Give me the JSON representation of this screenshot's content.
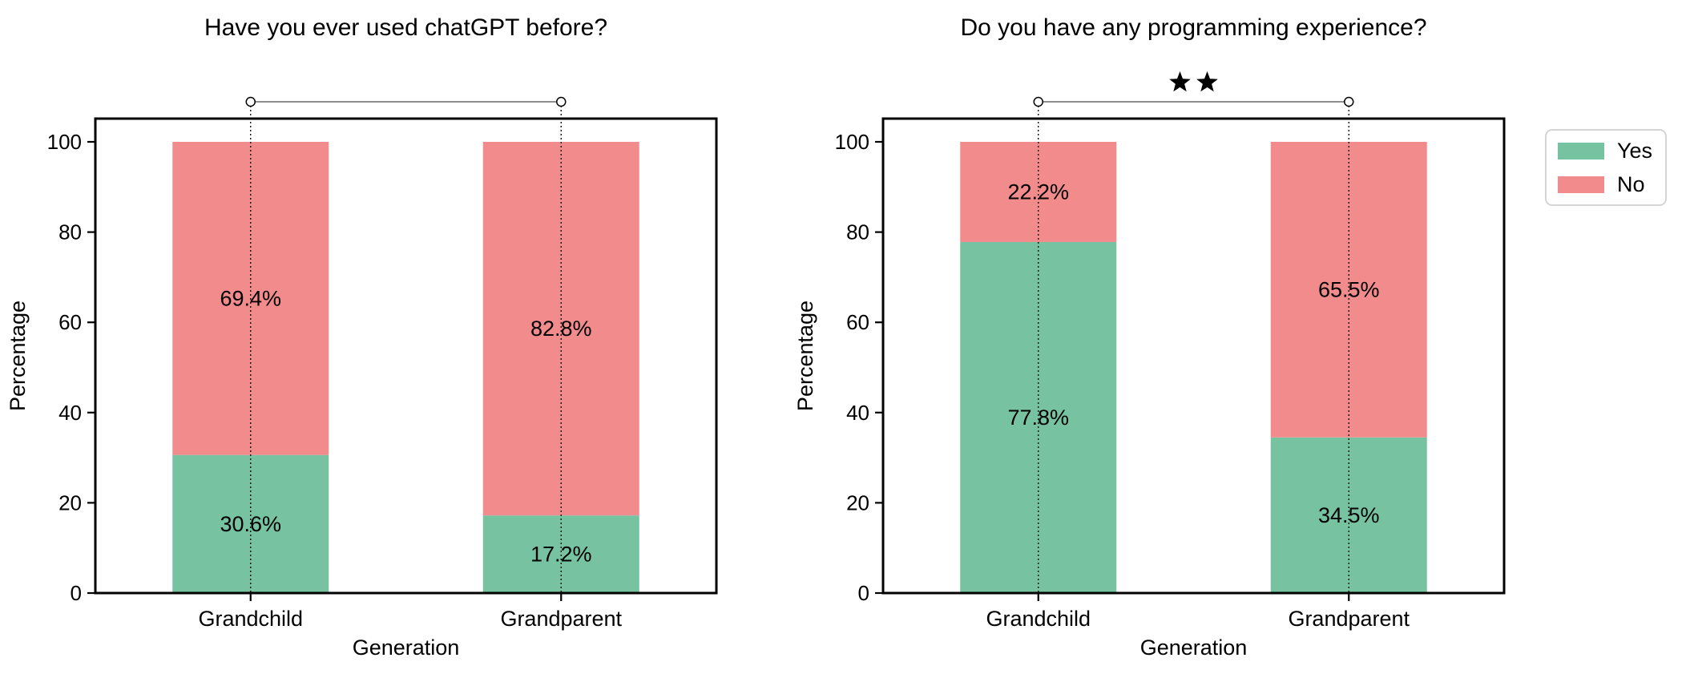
{
  "figure": {
    "background": "#ffffff",
    "colors": {
      "yes": "#76C2A1",
      "no": "#F28B8C",
      "bracket_line": "#7f7f7f",
      "axis": "#000000",
      "text": "#000000",
      "legend_border": "#d5d5d5"
    }
  },
  "legend": {
    "items": [
      {
        "label": "Yes",
        "color": "#76C2A1"
      },
      {
        "label": "No",
        "color": "#F28B8C"
      }
    ],
    "position": "outside upper right"
  },
  "chart_data": [
    {
      "type": "bar",
      "stacked": true,
      "title": "Have you ever used chatGPT before?",
      "xlabel": "Generation",
      "ylabel": "Percentage",
      "categories": [
        "Grandchild",
        "Grandparent"
      ],
      "series": [
        {
          "name": "Yes",
          "color": "#76C2A1",
          "values": [
            30.6,
            17.2
          ],
          "labels": [
            "30.6%",
            "17.2%"
          ]
        },
        {
          "name": "No",
          "color": "#F28B8C",
          "values": [
            69.4,
            82.8
          ],
          "labels": [
            "69.4%",
            "82.8%"
          ]
        }
      ],
      "ylim": [
        0,
        105
      ],
      "yticks": [
        0,
        20,
        40,
        60,
        80,
        100
      ],
      "grid": false,
      "significance": {
        "groups": [
          "Grandchild",
          "Grandparent"
        ],
        "text": ""
      }
    },
    {
      "type": "bar",
      "stacked": true,
      "title": "Do you have any programming experience?",
      "xlabel": "Generation",
      "ylabel": "Percentage",
      "categories": [
        "Grandchild",
        "Grandparent"
      ],
      "series": [
        {
          "name": "Yes",
          "color": "#76C2A1",
          "values": [
            77.8,
            34.5
          ],
          "labels": [
            "77.8%",
            "34.5%"
          ]
        },
        {
          "name": "No",
          "color": "#F28B8C",
          "values": [
            22.2,
            65.5
          ],
          "labels": [
            "22.2%",
            "65.5%"
          ]
        }
      ],
      "ylim": [
        0,
        105
      ],
      "yticks": [
        0,
        20,
        40,
        60,
        80,
        100
      ],
      "grid": false,
      "significance": {
        "groups": [
          "Grandchild",
          "Grandparent"
        ],
        "text": "**"
      }
    }
  ]
}
